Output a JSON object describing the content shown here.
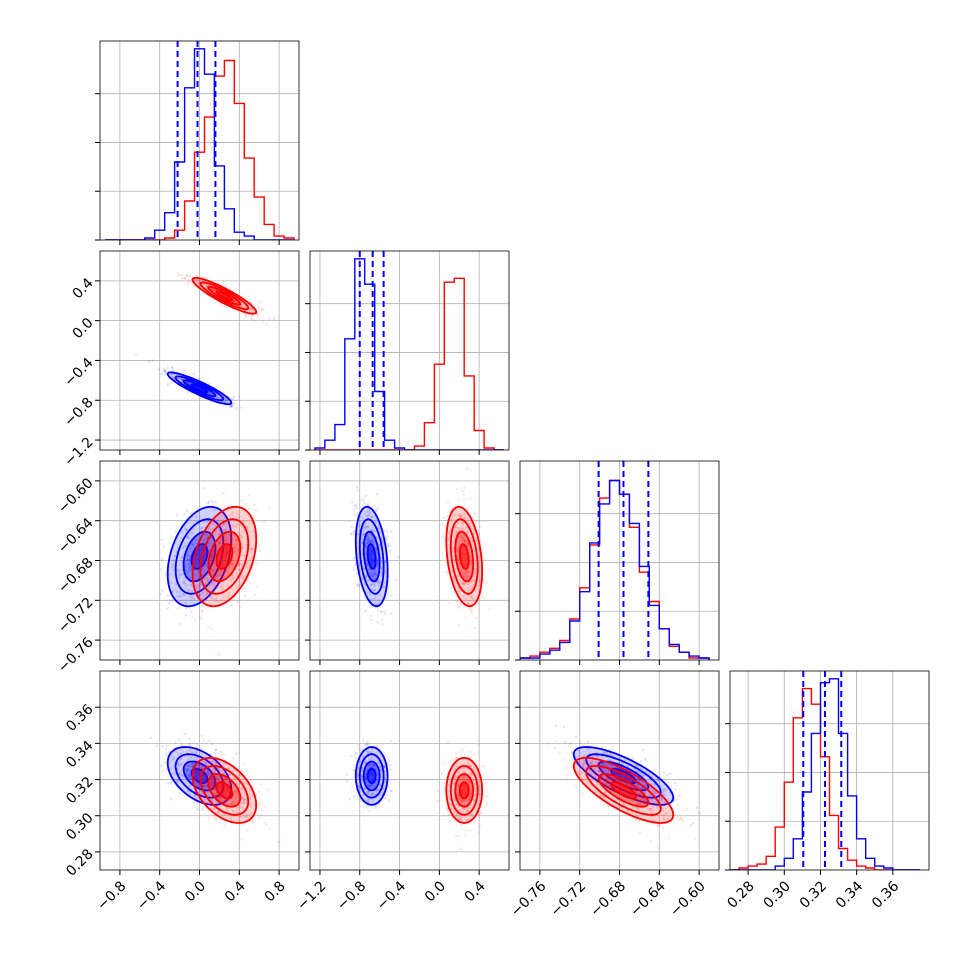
{
  "colors": {
    "series_a": "#0000ff",
    "series_b": "#ff0000",
    "grid": "#b0b0b0",
    "frame": "#000000"
  },
  "chart_data": {
    "type": "corner",
    "title": "",
    "grid": true,
    "parameters": [
      {
        "name": "",
        "range": [
          -1.0,
          1.0
        ],
        "ticks": [
          -0.8,
          -0.4,
          0.0,
          0.4,
          0.8
        ],
        "tick_labels": [
          "−0.8",
          "−0.4",
          "0.0",
          "0.4",
          "0.8"
        ]
      },
      {
        "name": "",
        "range": [
          -1.3,
          0.7
        ],
        "ticks": [
          -1.2,
          -0.8,
          -0.4,
          0.0,
          0.4
        ],
        "tick_labels": [
          "−1.2",
          "−0.8",
          "−0.4",
          "0.0",
          "0.4"
        ]
      },
      {
        "name": "",
        "range": [
          -0.78,
          -0.58
        ],
        "ticks": [
          -0.76,
          -0.72,
          -0.68,
          -0.64,
          -0.6
        ],
        "tick_labels": [
          "−0.76",
          "−0.72",
          "−0.68",
          "−0.64",
          "−0.60"
        ]
      },
      {
        "name": "",
        "range": [
          0.27,
          0.38
        ],
        "ticks": [
          0.28,
          0.3,
          0.32,
          0.34,
          0.36
        ],
        "tick_labels": [
          "0.28",
          "0.30",
          "0.32",
          "0.34",
          "0.36"
        ]
      }
    ],
    "series": [
      {
        "name": "",
        "color": "#0000ff",
        "mean": [
          0.0,
          -0.68,
          -0.676,
          0.322
        ],
        "std": [
          0.16,
          0.08,
          0.025,
          0.008
        ]
      },
      {
        "name": "",
        "color": "#ff0000",
        "mean": [
          0.25,
          0.25,
          -0.676,
          0.314
        ],
        "std": [
          0.16,
          0.09,
          0.025,
          0.009
        ]
      }
    ],
    "correlations": [
      {
        "pair": [
          0,
          1
        ],
        "series_a": -0.9,
        "series_b": -0.9
      },
      {
        "pair": [
          0,
          2
        ],
        "series_a": 0.35,
        "series_b": 0.35
      },
      {
        "pair": [
          0,
          3
        ],
        "series_a": -0.45,
        "series_b": -0.45
      },
      {
        "pair": [
          1,
          2
        ],
        "series_a": -0.3,
        "series_b": -0.3
      },
      {
        "pair": [
          1,
          3
        ],
        "series_a": 0.0,
        "series_b": 0.0
      },
      {
        "pair": [
          2,
          3
        ],
        "series_a": -0.75,
        "series_b": -0.75
      }
    ],
    "quantile_lines": {
      "color": "#0000ff",
      "style": "dashed",
      "values": [
        [
          -0.22,
          -0.02,
          0.16
        ],
        [
          -0.8,
          -0.67,
          -0.56
        ],
        [
          -0.701,
          -0.676,
          -0.651
        ],
        [
          0.3105,
          0.3225,
          0.3315
        ]
      ]
    },
    "histograms": [
      {
        "edges": [
          -0.95,
          -0.85,
          -0.75,
          -0.65,
          -0.55,
          -0.45,
          -0.35,
          -0.25,
          -0.15,
          -0.05,
          0.05,
          0.15,
          0.25,
          0.35,
          0.45,
          0.55,
          0.65,
          0.75,
          0.85,
          0.95
        ],
        "series_a": [
          0,
          0,
          0,
          0,
          0.01,
          0.05,
          0.14,
          0.4,
          0.78,
          0.98,
          0.85,
          0.38,
          0.16,
          0.04,
          0.02,
          0,
          0,
          0,
          0
        ],
        "series_b": [
          0,
          0,
          0,
          0,
          0,
          0,
          0.01,
          0.05,
          0.2,
          0.45,
          0.63,
          0.84,
          0.92,
          0.7,
          0.42,
          0.22,
          0.08,
          0.02,
          0.01
        ]
      },
      {
        "edges": [
          -1.25,
          -1.15,
          -1.05,
          -0.95,
          -0.85,
          -0.75,
          -0.65,
          -0.55,
          -0.45,
          -0.35,
          -0.25,
          -0.15,
          -0.05,
          0.05,
          0.15,
          0.25,
          0.35,
          0.45,
          0.55,
          0.65
        ],
        "series_a": [
          0.01,
          0.05,
          0.13,
          0.57,
          0.98,
          0.85,
          0.3,
          0.05,
          0.01,
          0,
          0,
          0,
          0,
          0,
          0,
          0,
          0,
          0,
          0
        ],
        "series_b": [
          0,
          0,
          0,
          0,
          0,
          0,
          0,
          0,
          0,
          0,
          0.02,
          0.14,
          0.44,
          0.86,
          0.88,
          0.38,
          0.1,
          0.01,
          0
        ]
      },
      {
        "edges": [
          -0.79,
          -0.78,
          -0.77,
          -0.76,
          -0.75,
          -0.74,
          -0.73,
          -0.72,
          -0.71,
          -0.7,
          -0.69,
          -0.68,
          -0.67,
          -0.66,
          -0.65,
          -0.64,
          -0.63,
          -0.62,
          -0.61,
          -0.6,
          -0.59
        ],
        "series_a": [
          0,
          0.01,
          0.01,
          0.03,
          0.05,
          0.09,
          0.2,
          0.35,
          0.6,
          0.8,
          0.92,
          0.85,
          0.7,
          0.48,
          0.28,
          0.16,
          0.08,
          0.04,
          0.02,
          0.01
        ],
        "series_b": [
          0,
          0.01,
          0.02,
          0.04,
          0.06,
          0.1,
          0.21,
          0.37,
          0.59,
          0.83,
          0.92,
          0.85,
          0.68,
          0.45,
          0.3,
          0.16,
          0.07,
          0.04,
          0.01,
          0.01
        ]
      },
      {
        "edges": [
          0.27,
          0.275,
          0.28,
          0.285,
          0.29,
          0.295,
          0.3,
          0.305,
          0.31,
          0.315,
          0.32,
          0.325,
          0.33,
          0.335,
          0.34,
          0.345,
          0.35,
          0.355,
          0.36,
          0.365,
          0.37,
          0.375
        ],
        "series_a": [
          0,
          0,
          0,
          0,
          0,
          0.02,
          0.06,
          0.16,
          0.4,
          0.7,
          0.96,
          0.98,
          0.7,
          0.38,
          0.16,
          0.06,
          0.02,
          0.01,
          0,
          0,
          0
        ],
        "series_b": [
          0,
          0.01,
          0.02,
          0.03,
          0.07,
          0.22,
          0.45,
          0.78,
          0.93,
          0.85,
          0.58,
          0.28,
          0.11,
          0.05,
          0.02,
          0.01,
          0,
          0,
          0,
          0,
          0
        ]
      }
    ]
  }
}
